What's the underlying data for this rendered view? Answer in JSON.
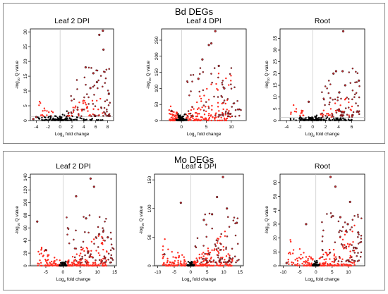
{
  "panels": [
    {
      "title": "Bd DEGs",
      "plots": [
        {
          "title": "Leaf 2 DPI",
          "xlim": [
            -5,
            9
          ],
          "ylim": [
            0,
            31
          ],
          "xticks": [
            -4,
            -2,
            0,
            2,
            4,
            6,
            8
          ],
          "yticks": [
            0,
            5,
            10,
            15,
            20,
            25,
            30
          ],
          "ref_y": 1.3,
          "spread": {
            "minx": -4.5,
            "maxx": 8.6,
            "base": 1.5,
            "slope": 2.6,
            "peak": 31,
            "bulk": 180,
            "red_bulk": false
          }
        },
        {
          "title": "Leaf 4 DPI",
          "xlim": [
            -4,
            13
          ],
          "ylim": [
            0,
            285
          ],
          "xticks": [
            0,
            5,
            10
          ],
          "yticks": [
            0,
            50,
            100,
            150,
            200,
            250
          ],
          "ref_y": 1.3,
          "spread": {
            "minx": -3,
            "maxx": 12,
            "base": 12,
            "slope": 30,
            "peak": 278,
            "bulk": 260,
            "red_bulk": true
          }
        },
        {
          "title": "Root",
          "xlim": [
            -5,
            8
          ],
          "ylim": [
            0,
            39
          ],
          "xticks": [
            -4,
            -2,
            0,
            2,
            4,
            6
          ],
          "yticks": [
            0,
            5,
            10,
            15,
            20,
            25,
            30,
            35
          ],
          "ref_y": 1.3,
          "spread": {
            "minx": -4,
            "maxx": 7.2,
            "base": 1.5,
            "slope": 3,
            "peak": 38,
            "bulk": 170,
            "red_bulk": false
          }
        }
      ]
    },
    {
      "title": "Mo DEGs",
      "plots": [
        {
          "title": "Leaf 2 DPI",
          "xlim": [
            -9.5,
            15.5
          ],
          "ylim": [
            0,
            145
          ],
          "xticks": [
            -5,
            0,
            5,
            10,
            15
          ],
          "yticks": [
            0,
            20,
            40,
            60,
            80,
            100,
            120,
            140
          ],
          "ref_y": 1.3,
          "spread": {
            "minx": -9,
            "maxx": 15,
            "base": 5,
            "slope": 7,
            "peak": 138,
            "bulk": 260,
            "red_bulk": true
          }
        },
        {
          "title": "Leaf 4 DPI",
          "xlim": [
            -11,
            16
          ],
          "ylim": [
            0,
            160
          ],
          "xticks": [
            -10,
            -5,
            0,
            5,
            10,
            15
          ],
          "yticks": [
            0,
            50,
            100,
            150
          ],
          "ref_y": 1.3,
          "spread": {
            "minx": -10,
            "maxx": 15,
            "base": 6,
            "slope": 9,
            "peak": 155,
            "bulk": 260,
            "red_bulk": true
          }
        },
        {
          "title": "Root",
          "xlim": [
            -11,
            15
          ],
          "ylim": [
            0,
            66
          ],
          "xticks": [
            -10,
            -5,
            0,
            5,
            10
          ],
          "yticks": [
            0,
            10,
            20,
            30,
            40,
            50,
            60
          ],
          "ref_y": 1.3,
          "spread": {
            "minx": -10,
            "maxx": 14,
            "base": 3,
            "slope": 4,
            "peak": 64,
            "bulk": 240,
            "red_bulk": true
          }
        }
      ]
    }
  ],
  "axis": {
    "xlabel": "Log",
    "xlabel_sub": "2",
    "xlabel_rest": " fold change",
    "ylabel_pre": "-log",
    "ylabel_sub": "10",
    "ylabel_rest": " Q value"
  },
  "colors": {
    "significant": "#c0282d",
    "nonsignificant": "#000000",
    "dense": "#ff2a1f",
    "guide": "#bbbbbb"
  },
  "chart_data": [
    {
      "type": "scatter",
      "title": "Leaf 2 DPI",
      "group": "Bd DEGs",
      "xlabel": "Log2 fold change",
      "ylabel": "-log10 Q value",
      "xlim": [
        -5,
        9
      ],
      "ylim": [
        0,
        31
      ],
      "highlights": [
        [
          7.2,
          31
        ],
        [
          6.6,
          29
        ],
        [
          7.3,
          24
        ],
        [
          8.2,
          9
        ],
        [
          4.3,
          18
        ],
        [
          5.6,
          16
        ],
        [
          6.2,
          13
        ],
        [
          5.1,
          11
        ],
        [
          -4.5,
          0.5
        ],
        [
          -4,
          1.2
        ]
      ]
    },
    {
      "type": "scatter",
      "title": "Leaf 4 DPI",
      "group": "Bd DEGs",
      "xlabel": "Log2 fold change",
      "ylabel": "-log10 Q value",
      "xlim": [
        -4,
        13
      ],
      "ylim": [
        0,
        285
      ],
      "highlights": [
        [
          6.8,
          278
        ],
        [
          6,
          240
        ],
        [
          5.5,
          235
        ],
        [
          4.2,
          190
        ],
        [
          7.5,
          170
        ],
        [
          3.4,
          130
        ],
        [
          8.6,
          100
        ],
        [
          -2,
          30
        ]
      ]
    },
    {
      "type": "scatter",
      "title": "Root",
      "group": "Bd DEGs",
      "xlabel": "Log2 fold change",
      "ylabel": "-log10 Q value",
      "xlim": [
        -5,
        8
      ],
      "ylim": [
        0,
        39
      ],
      "highlights": [
        [
          4.7,
          38
        ],
        [
          3.6,
          21
        ],
        [
          4.6,
          21
        ],
        [
          3.2,
          20
        ],
        [
          5,
          15
        ],
        [
          7.1,
          17
        ],
        [
          4.1,
          12
        ],
        [
          -0.6,
          8
        ]
      ]
    },
    {
      "type": "scatter",
      "title": "Leaf 2 DPI",
      "group": "Mo DEGs",
      "xlabel": "Log2 fold change",
      "ylabel": "-log10 Q value",
      "xlim": [
        -9.5,
        15.5
      ],
      "ylim": [
        0,
        145
      ],
      "highlights": [
        [
          8,
          138
        ],
        [
          9,
          125
        ],
        [
          3.8,
          110
        ],
        [
          6.7,
          75
        ],
        [
          10.5,
          50
        ],
        [
          13,
          45
        ],
        [
          -7.5,
          70
        ],
        [
          -5,
          25
        ]
      ]
    },
    {
      "type": "scatter",
      "title": "Leaf 4 DPI",
      "group": "Mo DEGs",
      "xlabel": "Log2 fold change",
      "ylabel": "-log10 Q value",
      "xlim": [
        -11,
        16
      ],
      "ylim": [
        0,
        160
      ],
      "highlights": [
        [
          9.8,
          155
        ],
        [
          8,
          120
        ],
        [
          11,
          100
        ],
        [
          -3,
          110
        ],
        [
          6.5,
          90
        ],
        [
          14,
          75
        ],
        [
          -8,
          20
        ],
        [
          4,
          80
        ]
      ]
    },
    {
      "type": "scatter",
      "title": "Root",
      "group": "Mo DEGs",
      "xlabel": "Log2 fold change",
      "ylabel": "-log10 Q value",
      "xlim": [
        -11,
        15
      ],
      "ylim": [
        0,
        66
      ],
      "highlights": [
        [
          4.5,
          64
        ],
        [
          6,
          57
        ],
        [
          9.8,
          30
        ],
        [
          10.5,
          46
        ],
        [
          13,
          24
        ],
        [
          7.5,
          35
        ],
        [
          -3,
          30
        ],
        [
          -9,
          2
        ]
      ]
    }
  ]
}
